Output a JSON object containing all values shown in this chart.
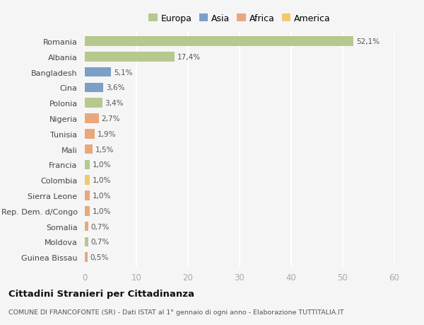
{
  "countries": [
    "Romania",
    "Albania",
    "Bangladesh",
    "Cina",
    "Polonia",
    "Nigeria",
    "Tunisia",
    "Mali",
    "Francia",
    "Colombia",
    "Sierra Leone",
    "Rep. Dem. d/Congo",
    "Somalia",
    "Moldova",
    "Guinea Bissau"
  ],
  "values": [
    52.1,
    17.4,
    5.1,
    3.6,
    3.4,
    2.7,
    1.9,
    1.5,
    1.0,
    1.0,
    1.0,
    1.0,
    0.7,
    0.7,
    0.5
  ],
  "labels": [
    "52,1%",
    "17,4%",
    "5,1%",
    "3,6%",
    "3,4%",
    "2,7%",
    "1,9%",
    "1,5%",
    "1,0%",
    "1,0%",
    "1,0%",
    "1,0%",
    "0,7%",
    "0,7%",
    "0,5%"
  ],
  "colors": [
    "#b5c98e",
    "#b5c98e",
    "#7b9fc7",
    "#7b9fc7",
    "#b5c98e",
    "#e8a87c",
    "#e8a87c",
    "#e8a87c",
    "#b5c98e",
    "#f0c96e",
    "#e8a87c",
    "#e8a87c",
    "#e8a87c",
    "#b5c98e",
    "#e8a87c"
  ],
  "legend_labels": [
    "Europa",
    "Asia",
    "Africa",
    "America"
  ],
  "legend_colors": [
    "#b5c98e",
    "#7b9fc7",
    "#e8a87c",
    "#f0c96e"
  ],
  "title": "Cittadini Stranieri per Cittadinanza",
  "subtitle": "COMUNE DI FRANCOFONTE (SR) - Dati ISTAT al 1° gennaio di ogni anno - Elaborazione TUTTITALIA.IT",
  "xlim": [
    0,
    60
  ],
  "xticks": [
    0,
    10,
    20,
    30,
    40,
    50,
    60
  ],
  "background_color": "#f5f5f5",
  "grid_color": "#ffffff",
  "bar_height": 0.62
}
